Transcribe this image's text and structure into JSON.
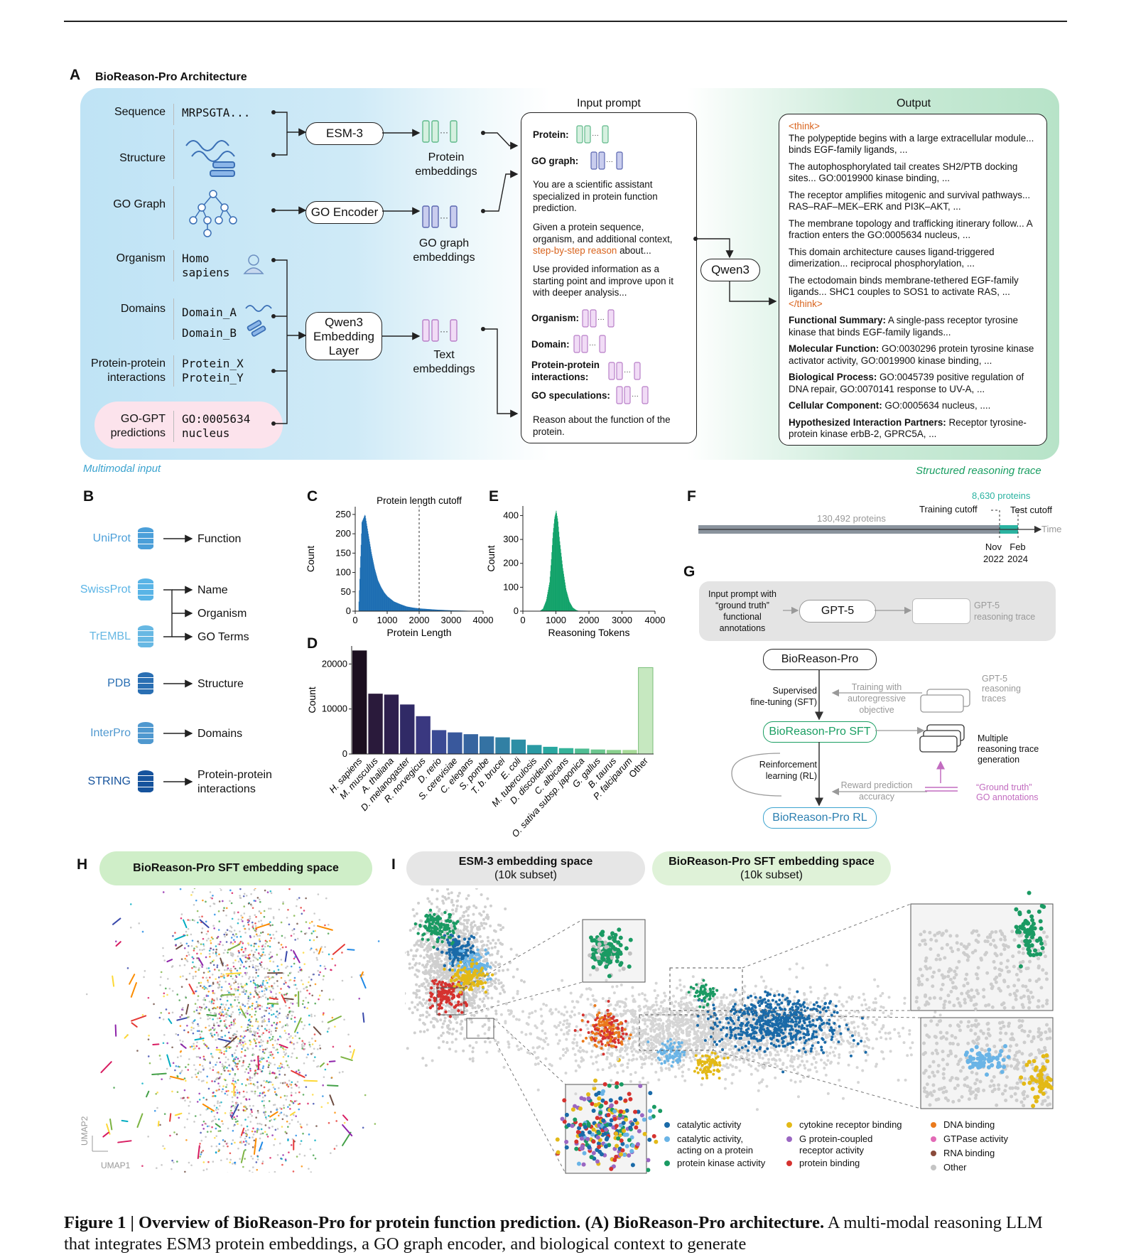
{
  "panels": {
    "a": "A",
    "b": "B",
    "c": "C",
    "d": "D",
    "e": "E",
    "f": "F",
    "g": "G",
    "h": "H",
    "i": "I"
  },
  "panel_a": {
    "title": "BioReason-Pro Architecture",
    "rows": [
      {
        "label": "Sequence",
        "value": "MRPSGTA..."
      },
      {
        "label": "Structure",
        "value": ""
      },
      {
        "label": "GO Graph",
        "value": ""
      },
      {
        "label": "Organism",
        "value": "Homo\nsapiens"
      },
      {
        "label": "Domains",
        "value": "Domain_A\nDomain_B"
      },
      {
        "label": "Protein-protein\ninteractions",
        "value": "Protein_X\nProtein_Y"
      },
      {
        "label": "GO-GPT\npredictions",
        "value": "GO:0005634\nnucleus"
      }
    ],
    "encoders": {
      "esm": "ESM-3",
      "go": "GO Encoder",
      "qwen_emb": "Qwen3\nEmbedding\nLayer",
      "qwen": "Qwen3"
    },
    "embeddings": {
      "protein": "Protein\nembeddings",
      "go": "GO graph\nembeddings",
      "text": "Text\nembeddings"
    },
    "input_prompt": {
      "title": "Input prompt",
      "protein": "Protein:",
      "go_graph": "GO graph:",
      "p1": "You are a scientific assistant specialized in protein function prediction.",
      "p2a": "Given a protein sequence, organism, and additional context,",
      "p2b": "step-by-step reason",
      "p2c": "about...",
      "p3": "Use provided information as a starting point and improve upon it with deeper analysis...",
      "organism": "Organism:",
      "domain": "Domain:",
      "ppi": "Protein-protein\ninteractions:",
      "go_spec": "GO speculations:",
      "reason": "Reason about the function of the protein."
    },
    "output": {
      "title": "Output",
      "think_open": "<think>",
      "think_close": "</think>",
      "lines": [
        "The polypeptide begins with a large extracellular module... binds EGF-family ligands, ...",
        "The autophosphorylated tail creates SH2/PTB docking sites... GO:0019900 kinase binding, ...",
        "The receptor amplifies mitogenic and survival pathways... RAS–RAF–MEK–ERK and PI3K–AKT, ...",
        "The membrane topology and trafficking itinerary follow... A fraction enters the GO:0005634 nucleus, ...",
        "This domain architecture causes ligand-triggered dimerization... reciprocal phosphorylation, ...",
        "The ectodomain binds membrane-tethered EGF-family ligands... SHC1 couples to SOS1 to activate RAS, ..."
      ],
      "fs_label": "Functional Summary:",
      "fs": "A single-pass receptor tyrosine kinase that binds EGF-family ligands...",
      "mf_label": "Molecular Function:",
      "mf": "GO:0030296 protein tyrosine kinase activator activity, GO:0019900 kinase binding, ...",
      "bp_label": "Biological Process:",
      "bp": "GO:0045739 positive regulation of DNA repair, GO:0070141 response to UV-A, ...",
      "cc_label": "Cellular Component:",
      "cc": "GO:0005634 nucleus, ....",
      "hip_label": "Hypothesized Interaction Partners:",
      "hip": "Receptor tyrosine-protein kinase erbB-2, GPRC5A, ..."
    },
    "caption_left": "Multimodal input",
    "caption_right": "Structured reasoning trace"
  },
  "panel_b": {
    "sources": [
      {
        "name": "UniProt",
        "color": "#4b9fd9"
      },
      {
        "name": "SwissProt",
        "color": "#59b4e6"
      },
      {
        "name": "TrEMBL",
        "color": "#67b8e3"
      },
      {
        "name": "PDB",
        "color": "#2a6fb3"
      },
      {
        "name": "InterPro",
        "color": "#4f98cf"
      },
      {
        "name": "STRING",
        "color": "#16539d"
      }
    ],
    "targets": [
      "Function",
      "Name",
      "Organism",
      "GO Terms",
      "Structure",
      "Domains",
      "Protein-protein\ninteractions"
    ]
  },
  "panel_c": {
    "chart_data": {
      "type": "bar",
      "title": "",
      "annotation": "Protein length cutoff",
      "cutoff": 2000,
      "xlabel": "Protein Length",
      "ylabel": "Count",
      "xlim": [
        0,
        4000
      ],
      "ylim": [
        0,
        270
      ],
      "xticks": [
        0,
        1000,
        2000,
        3000,
        4000
      ],
      "yticks": [
        0,
        50,
        100,
        150,
        200,
        250
      ],
      "color": "#1f6fb3",
      "x": [
        100,
        200,
        300,
        400,
        500,
        600,
        700,
        800,
        900,
        1000,
        1200,
        1400,
        1600,
        1800,
        2000,
        2500,
        3000,
        3500,
        4000
      ],
      "values": [
        10,
        230,
        250,
        200,
        150,
        110,
        80,
        62,
        48,
        38,
        25,
        18,
        12,
        9,
        7,
        4,
        2,
        1,
        0
      ]
    }
  },
  "panel_d": {
    "chart_data": {
      "type": "bar",
      "xlabel": "",
      "ylabel": "Count",
      "ylim": [
        0,
        24000
      ],
      "yticks": [
        0,
        10000,
        20000
      ],
      "categories": [
        "H. sapiens",
        "M. musculus",
        "A. thaliana",
        "D. melanogaster",
        "R. norvegicus",
        "D. rerio",
        "S. cerevisiae",
        "C. elegans",
        "S. pombe",
        "T. b. brucei",
        "E. coli",
        "M. tuberculosis",
        "D. discoideum",
        "C. albicans",
        "O. sativa subsp. japonica",
        "G. gallus",
        "B. taurus",
        "P. falciparum",
        "Other"
      ],
      "values": [
        23000,
        13400,
        13200,
        11000,
        8400,
        5300,
        4800,
        4400,
        3900,
        3700,
        3200,
        2000,
        1600,
        1300,
        1200,
        1000,
        900,
        900,
        19200
      ],
      "colors": [
        "#1b0f1f",
        "#2a1a3b",
        "#2e1f4d",
        "#302a66",
        "#3a3880",
        "#3a4a94",
        "#39589c",
        "#3765a0",
        "#3472a3",
        "#3180a4",
        "#2d8ea5",
        "#2a9aa4",
        "#28a7a0",
        "#35b39a",
        "#4fbd93",
        "#6bc68e",
        "#89d08d",
        "#a7db98",
        "#c6e8c0"
      ]
    }
  },
  "panel_e": {
    "chart_data": {
      "type": "bar",
      "xlabel": "Reasoning Tokens",
      "ylabel": "Count",
      "xlim": [
        0,
        4000
      ],
      "ylim": [
        0,
        440
      ],
      "xticks": [
        0,
        1000,
        2000,
        3000,
        4000
      ],
      "yticks": [
        0,
        100,
        200,
        300,
        400
      ],
      "color": "#13a36a",
      "x": [
        500,
        600,
        700,
        800,
        850,
        900,
        950,
        1000,
        1050,
        1100,
        1200,
        1300,
        1400,
        1500,
        1600,
        1700
      ],
      "values": [
        0,
        10,
        45,
        120,
        210,
        320,
        390,
        420,
        380,
        300,
        180,
        90,
        40,
        15,
        5,
        0
      ]
    }
  },
  "panel_f": {
    "count_text": "8,630 proteins",
    "train_label": "Training cutoff",
    "test_label": "Test cutoff",
    "total": "130,492 proteins",
    "time": "Time",
    "nov": "Nov\n2022",
    "feb": "Feb\n2024"
  },
  "panel_g": {
    "input": "Input prompt with\n“ground truth”\nfunctional\nannotations",
    "gpt": "GPT-5",
    "trace": "GPT-5\nreasoning trace",
    "pro": "BioReason-Pro",
    "sft_label": "Supervised\nfine-tuning (SFT)",
    "training": "Training with\nautoregressive\nobjective",
    "gpt_traces": "GPT-5\nreasoning\ntraces",
    "pro_sft": "BioReason-Pro SFT",
    "multiple": "Multiple\nreasoning trace\ngeneration",
    "rl_label": "Reinforcement\nlearning (RL)",
    "reward": "Reward prediction\naccuracy",
    "ground": "“Ground truth”\nGO annotations",
    "pro_rl": "BioReason-Pro RL"
  },
  "panel_h": {
    "title": "BioReason-Pro SFT embedding space",
    "umap1": "UMAP1",
    "umap2": "UMAP2"
  },
  "panel_i": {
    "esm_title": "ESM-3 embedding space",
    "esm_sub": "(10k subset)",
    "sft_title": "BioReason-Pro SFT embedding space",
    "sft_sub": "(10k subset)",
    "legend": [
      {
        "label": "catalytic activity",
        "color": "#1a6aa8"
      },
      {
        "label": "catalytic activity,\nacting on a protein",
        "color": "#6ab4e6"
      },
      {
        "label": "protein kinase activity",
        "color": "#1a9a63"
      },
      {
        "label": "cytokine receptor binding",
        "color": "#e3b917"
      },
      {
        "label": "G protein-coupled\nreceptor activity",
        "color": "#9a66c2"
      },
      {
        "label": "protein binding",
        "color": "#d5322f"
      },
      {
        "label": "DNA binding",
        "color": "#ea7a1c"
      },
      {
        "label": "GTPase activity",
        "color": "#e26ab6"
      },
      {
        "label": "RNA binding",
        "color": "#8a4a3a"
      },
      {
        "label": "Other",
        "color": "#c4c4c4"
      }
    ]
  },
  "caption": {
    "bold": "Figure 1 | Overview of BioReason-Pro for protein function prediction. (A) BioReason-Pro architecture.",
    "text": " A multi-modal reasoning LLM that integrates ESM3 protein embeddings, a GO graph encoder, and biological context to generate"
  }
}
